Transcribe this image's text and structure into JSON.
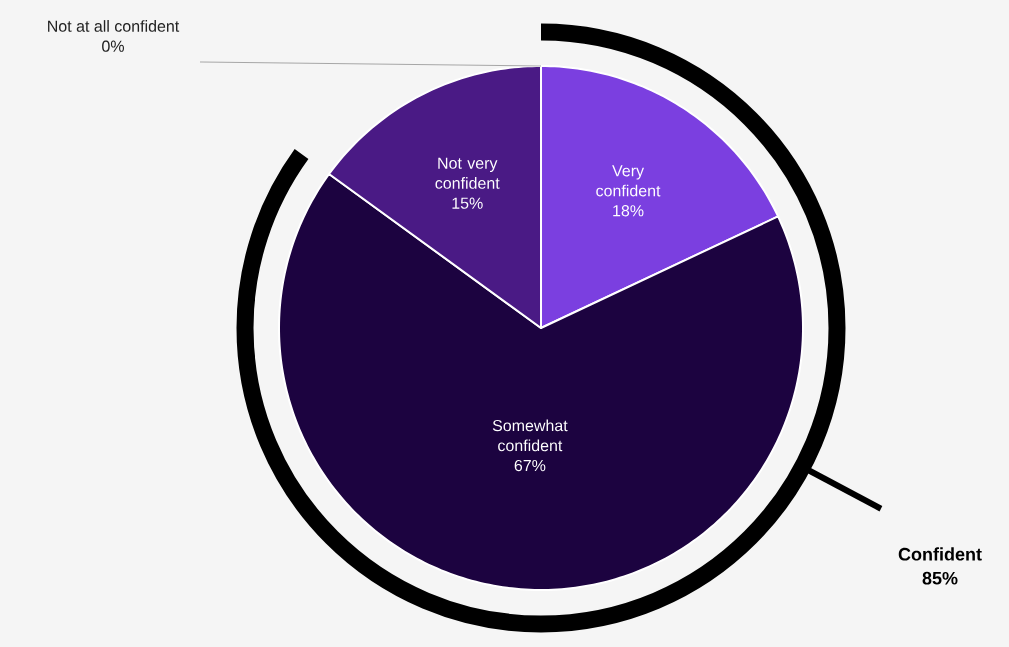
{
  "chart_data": {
    "type": "pie",
    "categories": [
      "Very confident",
      "Somewhat confident",
      "Not very confident",
      "Not at all confident"
    ],
    "values": [
      18,
      67,
      15,
      0
    ],
    "colors": [
      "#7b3fe0",
      "#1c0340",
      "#4a1a85",
      "#a6a6a6"
    ],
    "value_labels": [
      "18%",
      "67%",
      "15%",
      "0%"
    ],
    "annotations": [
      "Confident 85%"
    ]
  }
}
